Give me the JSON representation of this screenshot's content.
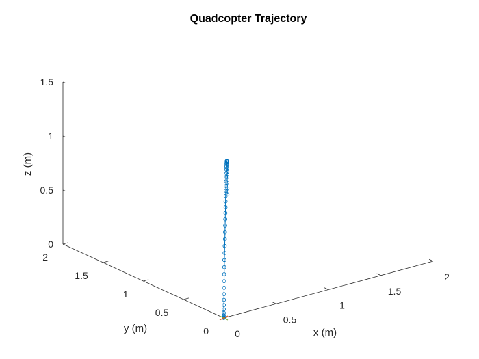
{
  "chart_data": {
    "type": "line",
    "title": "Quadcopter Trajectory",
    "xlabel": "x (m)",
    "ylabel": "y (m)",
    "zlabel": "z (m)",
    "xlim": [
      0,
      2
    ],
    "ylim": [
      0,
      2
    ],
    "zlim": [
      0,
      1.5
    ],
    "xticks": [
      "0",
      "0.5",
      "1",
      "1.5",
      "2"
    ],
    "yticks": [
      "0",
      "0.5",
      "1",
      "1.5",
      "2"
    ],
    "zticks": [
      "0",
      "0.5",
      "1",
      "1.5"
    ],
    "grid": false,
    "marker": "circle",
    "line_color": "#0072bd",
    "series": [
      {
        "x": [
          0,
          0,
          0,
          0.001,
          0.003,
          0.007,
          0.012,
          0.019,
          0.027,
          0.036,
          0.046,
          0.058,
          0.07,
          0.083,
          0.097,
          0.111,
          0.126,
          0.141,
          0.156,
          0.171,
          0.186,
          0.201,
          0.215,
          0.229,
          0.243,
          0.257,
          0.27,
          0.283,
          0.296,
          0.309,
          0.322,
          0.335,
          0.348,
          0.36,
          0.372,
          0.384,
          0.395,
          0.405,
          0.414,
          0.422,
          0.428,
          0.433,
          0.437,
          0.44
        ],
        "y": [
          0,
          0,
          0,
          0.001,
          0.003,
          0.008,
          0.014,
          0.022,
          0.032,
          0.043,
          0.056,
          0.07,
          0.084,
          0.1,
          0.116,
          0.133,
          0.15,
          0.168,
          0.186,
          0.204,
          0.222,
          0.24,
          0.258,
          0.275,
          0.292,
          0.308,
          0.324,
          0.34,
          0.355,
          0.371,
          0.387,
          0.402,
          0.417,
          0.432,
          0.446,
          0.46,
          0.474,
          0.486,
          0.497,
          0.506,
          0.514,
          0.52,
          0.524,
          0.528
        ],
        "z": [
          0,
          0.005,
          0.012,
          0.025,
          0.045,
          0.075,
          0.112,
          0.155,
          0.203,
          0.255,
          0.31,
          0.366,
          0.423,
          0.48,
          0.536,
          0.592,
          0.646,
          0.699,
          0.75,
          0.799,
          0.846,
          0.891,
          0.934,
          0.975,
          1.013,
          1.049,
          1.083,
          1.114,
          1.142,
          1.166,
          1.185,
          1.199,
          1.207,
          1.209,
          1.204,
          1.192,
          1.172,
          1.145,
          1.11,
          1.067,
          1.017,
          0.962,
          0.904,
          0.848
        ]
      }
    ],
    "start_marker_color": "#d95319",
    "end_marker_color": "#77ac30"
  }
}
